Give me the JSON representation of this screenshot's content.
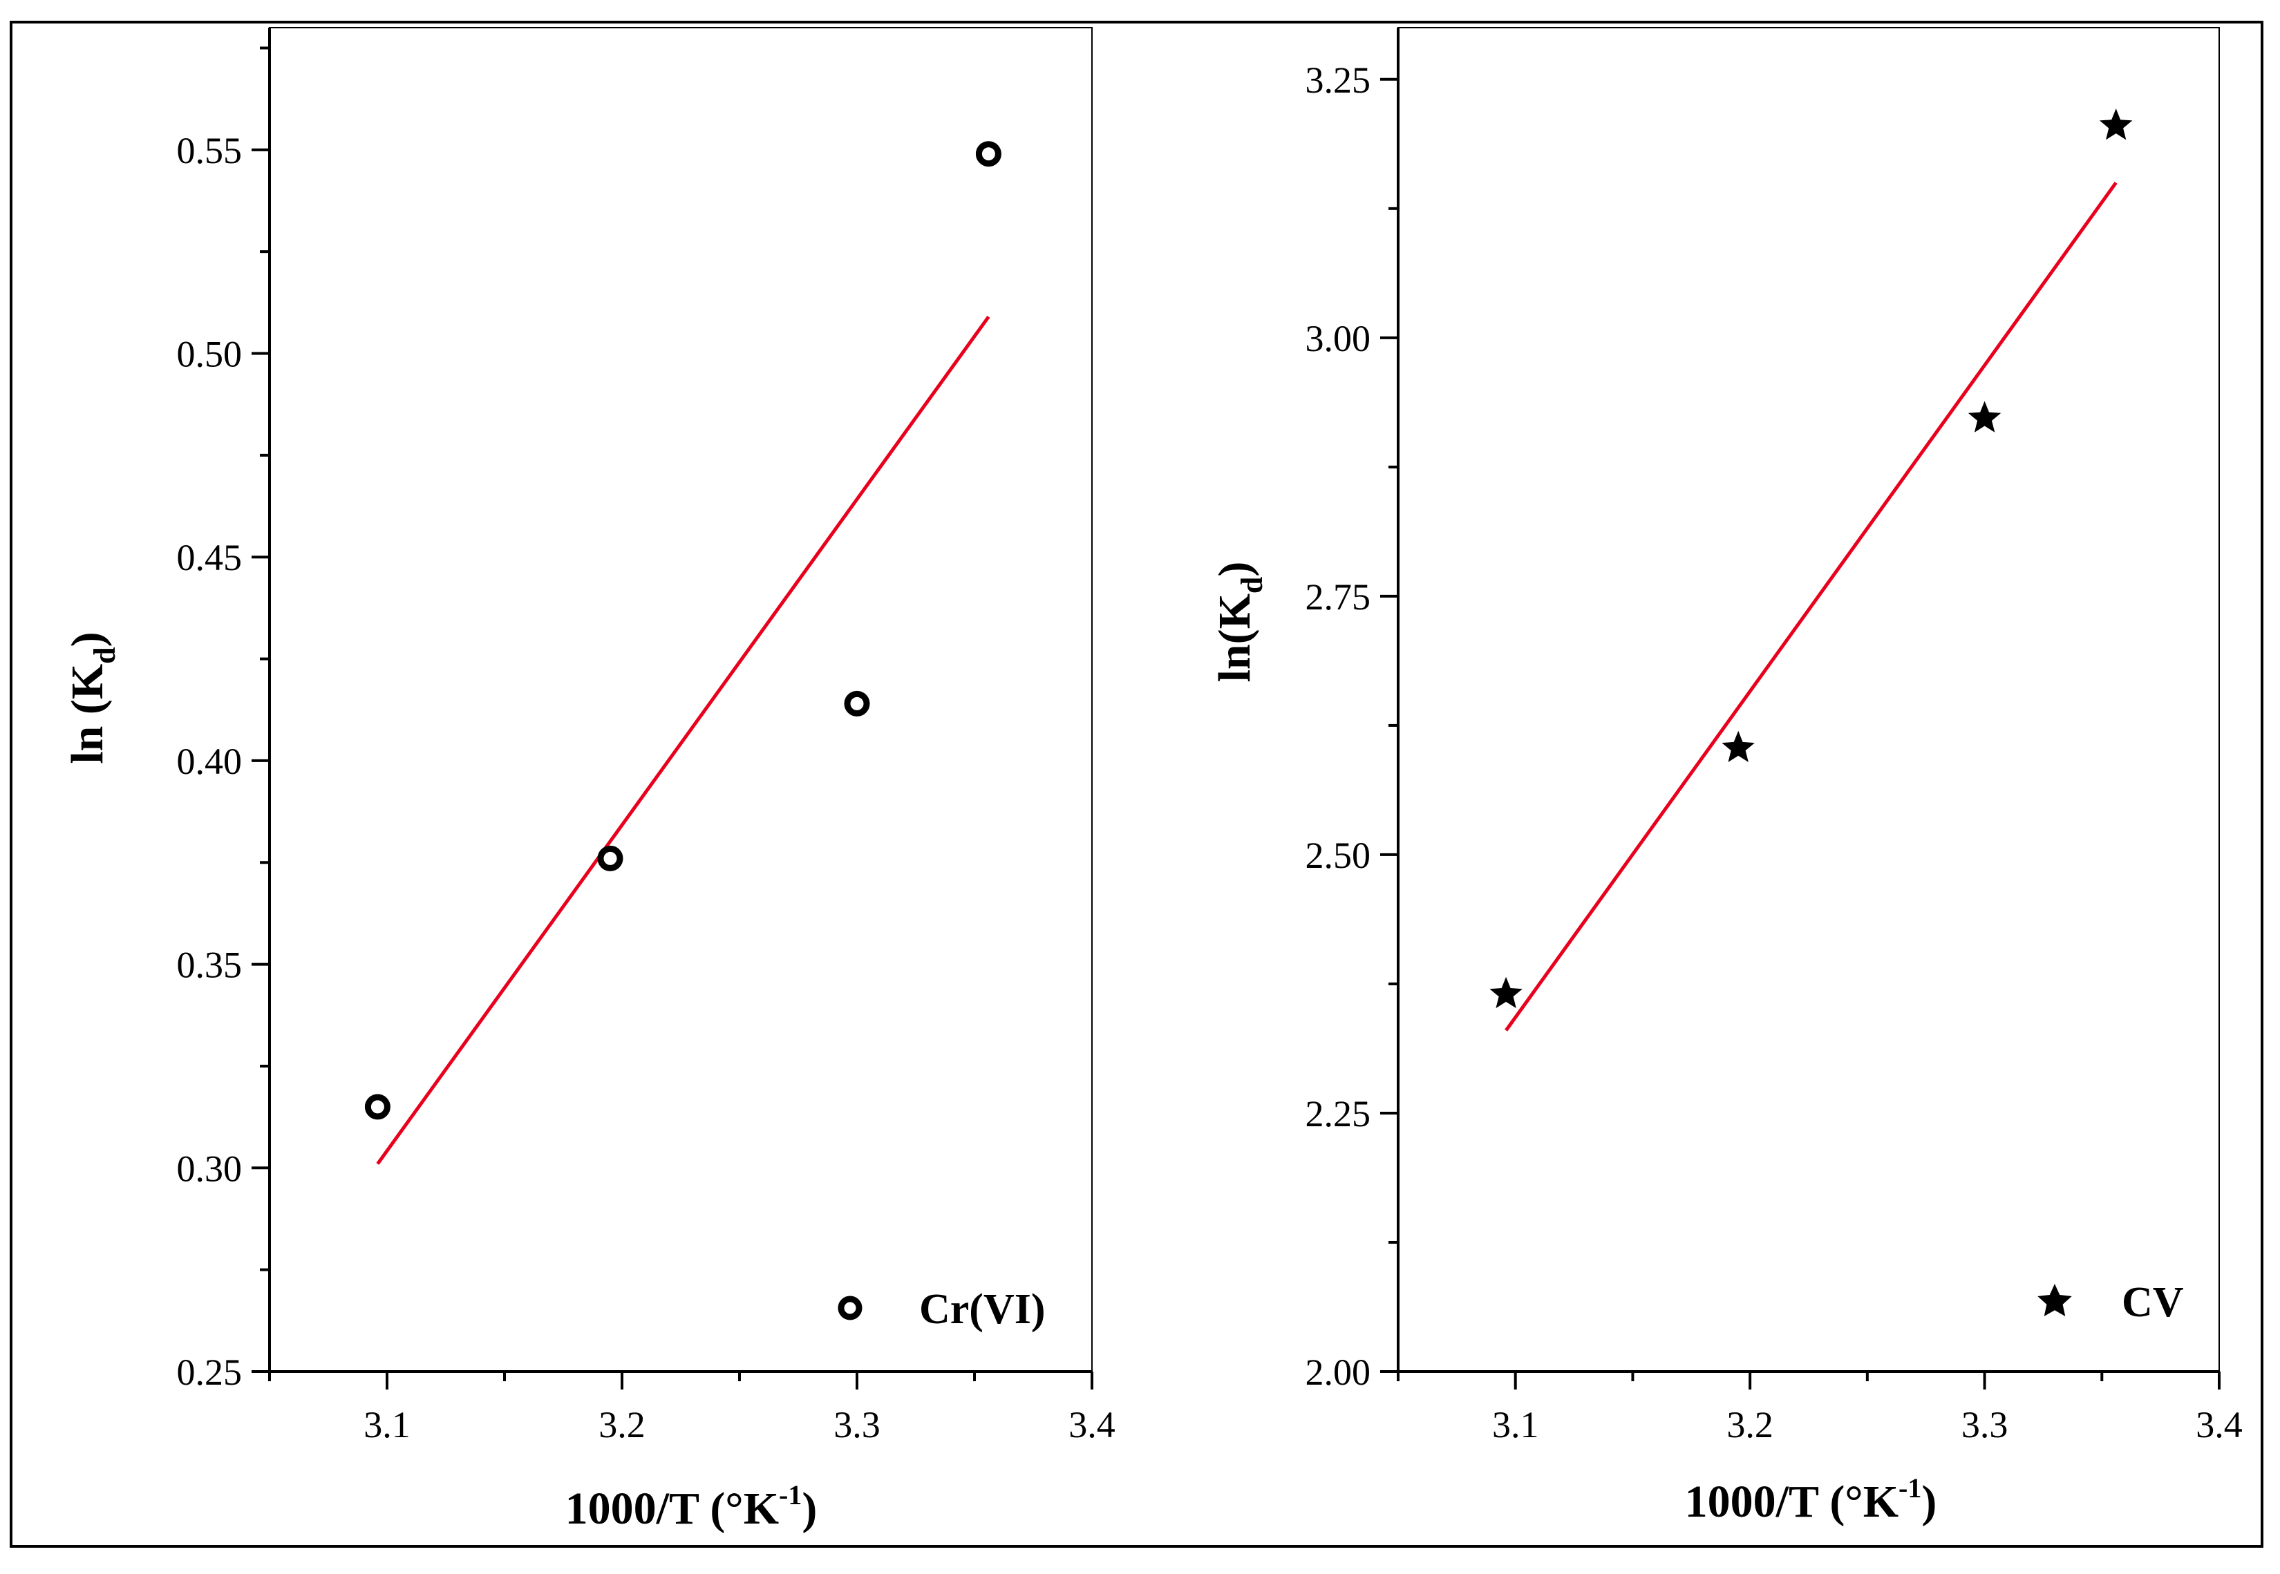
{
  "chart_data": [
    {
      "type": "scatter",
      "title": "",
      "xlabel": "1000/T (°K",
      "xlabel_sup": "-1",
      "xlabel_end": ")",
      "ylabel": "ln (K",
      "ylabel_sub": "d",
      "ylabel_end": ")",
      "xlim": [
        3.05,
        3.4
      ],
      "ylim": [
        0.25,
        0.58
      ],
      "xticks": [
        3.1,
        3.2,
        3.3,
        3.4
      ],
      "xtick_labels": [
        "3.1",
        "3.2",
        "3.3",
        "3.4"
      ],
      "yticks": [
        0.25,
        0.3,
        0.35,
        0.4,
        0.45,
        0.5,
        0.55
      ],
      "ytick_labels": [
        "0.25",
        "0.30",
        "0.35",
        "0.40",
        "0.45",
        "0.50",
        "0.55"
      ],
      "series": [
        {
          "name": "Cr(VI)",
          "marker": "circle",
          "x": [
            3.096,
            3.195,
            3.3,
            3.356
          ],
          "y": [
            0.315,
            0.376,
            0.414,
            0.549
          ]
        }
      ],
      "fit_line": {
        "x": [
          3.096,
          3.356
        ],
        "y": [
          0.301,
          0.509
        ],
        "color": "#e8001c"
      },
      "legend": {
        "label": "Cr(VI)",
        "placement": "bottom-right"
      },
      "grid": false
    },
    {
      "type": "scatter",
      "title": "",
      "xlabel": "1000/T (°K",
      "xlabel_sup": "-1",
      "xlabel_end": ")",
      "ylabel": "ln(K",
      "ylabel_sub": "d",
      "ylabel_end": ")",
      "xlim": [
        3.05,
        3.4
      ],
      "ylim": [
        2.0,
        3.3
      ],
      "xticks": [
        3.1,
        3.2,
        3.3,
        3.4
      ],
      "xtick_labels": [
        "3.1",
        "3.2",
        "3.3",
        "3.4"
      ],
      "yticks": [
        2.0,
        2.25,
        2.5,
        2.75,
        3.0,
        3.25
      ],
      "ytick_labels": [
        "2.00",
        "2.25",
        "2.50",
        "2.75",
        "3.00",
        "3.25"
      ],
      "series": [
        {
          "name": "CV",
          "marker": "star",
          "x": [
            3.096,
            3.195,
            3.3,
            3.356
          ],
          "y": [
            2.365,
            2.603,
            2.922,
            3.205
          ]
        }
      ],
      "fit_line": {
        "x": [
          3.096,
          3.356
        ],
        "y": [
          2.33,
          3.15
        ],
        "color": "#e8001c"
      },
      "legend": {
        "label": "CV",
        "placement": "bottom-right"
      },
      "grid": false
    }
  ]
}
